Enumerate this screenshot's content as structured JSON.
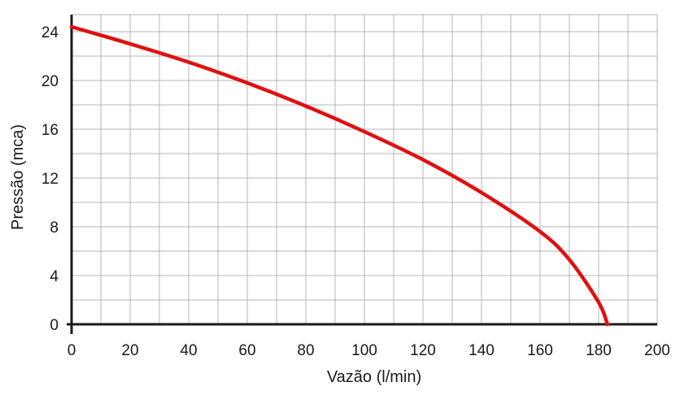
{
  "chart_data": {
    "type": "line",
    "title": "",
    "xlabel": "Vazão (l/min)",
    "ylabel": "Pressão (mca)",
    "xlim": [
      0,
      200
    ],
    "ylim": [
      0,
      25
    ],
    "x_ticks": [
      0,
      20,
      40,
      60,
      80,
      100,
      120,
      140,
      160,
      180,
      200
    ],
    "x_tick_labels": [
      "0",
      "20",
      "40",
      "60",
      "80",
      "100",
      "120",
      "140",
      "160",
      "180",
      "200"
    ],
    "y_ticks": [
      0,
      4,
      8,
      12,
      16,
      20,
      24
    ],
    "y_tick_labels": [
      "0",
      "4",
      "8",
      "12",
      "16",
      "20",
      "24"
    ],
    "x_minor_step": 10,
    "y_minor_step": 2,
    "grid": true,
    "legend": "none",
    "series": [
      {
        "color": "#e01010",
        "x": [
          0,
          20,
          40,
          60,
          80,
          100,
          120,
          140,
          160,
          170,
          180,
          183
        ],
        "y": [
          24.4,
          23.0,
          21.5,
          19.8,
          17.9,
          15.8,
          13.5,
          10.8,
          7.6,
          5.3,
          1.8,
          0
        ]
      }
    ],
    "colors": {
      "grid": "#b4b4b4",
      "axis": "#1a1a1a",
      "line": "#e01010"
    }
  }
}
